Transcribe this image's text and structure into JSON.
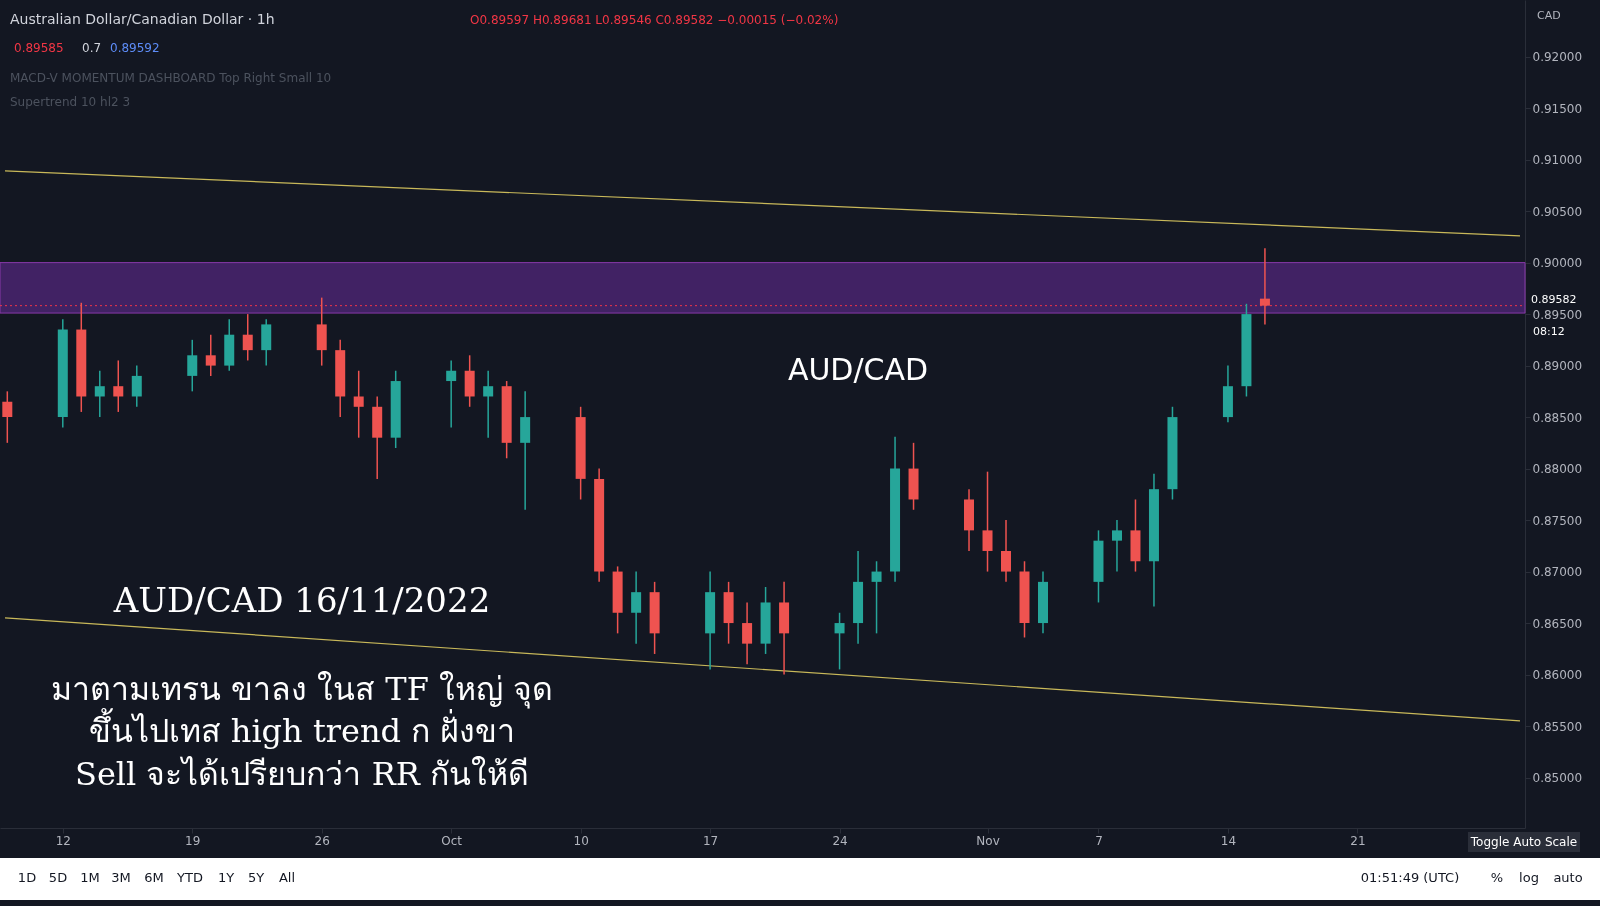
{
  "chart_data": {
    "type": "candlestick",
    "title": "Australian Dollar/Canadian Dollar · 1h",
    "x": [
      "2022-09-09",
      "2022-09-12",
      "2022-09-13",
      "2022-09-14",
      "2022-09-15",
      "2022-09-16",
      "2022-09-19",
      "2022-09-20",
      "2022-09-21",
      "2022-09-22",
      "2022-09-23",
      "2022-09-26",
      "2022-09-27",
      "2022-09-28",
      "2022-09-29",
      "2022-09-30",
      "2022-10-03",
      "2022-10-04",
      "2022-10-05",
      "2022-10-06",
      "2022-10-07",
      "2022-10-10",
      "2022-10-11",
      "2022-10-12",
      "2022-10-13",
      "2022-10-14",
      "2022-10-17",
      "2022-10-18",
      "2022-10-19",
      "2022-10-20",
      "2022-10-21",
      "2022-10-24",
      "2022-10-25",
      "2022-10-26",
      "2022-10-27",
      "2022-10-28",
      "2022-10-31",
      "2022-11-01",
      "2022-11-02",
      "2022-11-03",
      "2022-11-04",
      "2022-11-07",
      "2022-11-08",
      "2022-11-09",
      "2022-11-10",
      "2022-11-11",
      "2022-11-14",
      "2022-11-15",
      "2022-11-16"
    ],
    "ohlc": [
      [
        0.8865,
        0.8875,
        0.8825,
        0.885
      ],
      [
        0.885,
        0.8945,
        0.884,
        0.8935
      ],
      [
        0.8935,
        0.8961,
        0.8855,
        0.887
      ],
      [
        0.887,
        0.8895,
        0.885,
        0.888
      ],
      [
        0.888,
        0.8905,
        0.8855,
        0.887
      ],
      [
        0.887,
        0.89,
        0.886,
        0.889
      ],
      [
        0.889,
        0.8925,
        0.8875,
        0.891
      ],
      [
        0.891,
        0.893,
        0.889,
        0.89
      ],
      [
        0.89,
        0.8945,
        0.8895,
        0.893
      ],
      [
        0.893,
        0.895,
        0.8905,
        0.8915
      ],
      [
        0.8915,
        0.8945,
        0.89,
        0.894
      ],
      [
        0.894,
        0.8966,
        0.89,
        0.8915
      ],
      [
        0.8915,
        0.8925,
        0.885,
        0.887
      ],
      [
        0.887,
        0.8895,
        0.883,
        0.886
      ],
      [
        0.886,
        0.887,
        0.879,
        0.883
      ],
      [
        0.883,
        0.8895,
        0.882,
        0.8885
      ],
      [
        0.8885,
        0.8905,
        0.884,
        0.8895
      ],
      [
        0.8895,
        0.891,
        0.886,
        0.887
      ],
      [
        0.887,
        0.8895,
        0.883,
        0.888
      ],
      [
        0.888,
        0.8885,
        0.881,
        0.8825
      ],
      [
        0.8825,
        0.8875,
        0.876,
        0.885
      ],
      [
        0.885,
        0.886,
        0.877,
        0.879
      ],
      [
        0.879,
        0.88,
        0.869,
        0.87
      ],
      [
        0.87,
        0.8705,
        0.864,
        0.866
      ],
      [
        0.866,
        0.87,
        0.863,
        0.868
      ],
      [
        0.868,
        0.869,
        0.862,
        0.864
      ],
      [
        0.864,
        0.87,
        0.8605,
        0.868
      ],
      [
        0.868,
        0.869,
        0.863,
        0.865
      ],
      [
        0.865,
        0.867,
        0.861,
        0.863
      ],
      [
        0.863,
        0.8685,
        0.862,
        0.867
      ],
      [
        0.867,
        0.869,
        0.86,
        0.864
      ],
      [
        0.864,
        0.866,
        0.8605,
        0.865
      ],
      [
        0.865,
        0.872,
        0.863,
        0.869
      ],
      [
        0.869,
        0.871,
        0.864,
        0.87
      ],
      [
        0.87,
        0.8831,
        0.869,
        0.88
      ],
      [
        0.88,
        0.8825,
        0.876,
        0.877
      ],
      [
        0.877,
        0.878,
        0.872,
        0.874
      ],
      [
        0.874,
        0.8797,
        0.87,
        0.872
      ],
      [
        0.872,
        0.875,
        0.869,
        0.87
      ],
      [
        0.87,
        0.871,
        0.8636,
        0.865
      ],
      [
        0.865,
        0.87,
        0.864,
        0.869
      ],
      [
        0.869,
        0.874,
        0.867,
        0.873
      ],
      [
        0.873,
        0.875,
        0.87,
        0.874
      ],
      [
        0.874,
        0.877,
        0.87,
        0.871
      ],
      [
        0.871,
        0.8795,
        0.8666,
        0.878
      ],
      [
        0.878,
        0.886,
        0.877,
        0.885
      ],
      [
        0.885,
        0.89,
        0.8845,
        0.888
      ],
      [
        0.888,
        0.896,
        0.887,
        0.895
      ],
      [
        0.8965,
        0.9014,
        0.894,
        0.89582
      ]
    ],
    "colors": [
      "#ef5350",
      "#26a69a",
      "#ef5350",
      "#26a69a",
      "#ef5350",
      "#26a69a",
      "#26a69a",
      "#ef5350",
      "#26a69a",
      "#ef5350",
      "#26a69a",
      "#ef5350",
      "#ef5350",
      "#ef5350",
      "#ef5350",
      "#26a69a",
      "#26a69a",
      "#ef5350",
      "#26a69a",
      "#ef5350",
      "#26a69a",
      "#ef5350",
      "#ef5350",
      "#ef5350",
      "#26a69a",
      "#ef5350",
      "#26a69a",
      "#ef5350",
      "#ef5350",
      "#26a69a",
      "#ef5350",
      "#26a69a",
      "#26a69a",
      "#26a69a",
      "#26a69a",
      "#ef5350",
      "#ef5350",
      "#ef5350",
      "#ef5350",
      "#ef5350",
      "#26a69a",
      "#26a69a",
      "#26a69a",
      "#ef5350",
      "#26a69a",
      "#26a69a",
      "#26a69a",
      "#26a69a",
      "#ef5350"
    ],
    "series": [
      {
        "type": "line",
        "color": "#c9b95a",
        "x": [
          "2022-09-08T21:00",
          "2022-11-29T19:00"
        ],
        "values": [
          0.9089,
          0.9026
        ]
      },
      {
        "type": "line",
        "color": "#c9b95a",
        "x": [
          "2022-09-08T21:00",
          "2022-11-29T19:00"
        ],
        "values": [
          0.8655,
          0.8555
        ]
      }
    ],
    "bands": [
      {
        "axis": "y",
        "from": 0.8951,
        "to": 0.9,
        "color": "#4a2470"
      }
    ],
    "ref_lines": [
      {
        "axis": "y",
        "value": 0.89582,
        "label": "0.89582",
        "color": "#f23645",
        "line_style": "dotted"
      }
    ],
    "xlim": [
      "2022-09-08T21:00",
      "2022-11-29T19:00"
    ],
    "xticks": [
      {
        "value": "2022-09-12",
        "label": "12"
      },
      {
        "value": "2022-09-19",
        "label": "19"
      },
      {
        "value": "2022-09-26",
        "label": "26"
      },
      {
        "value": "2022-10-03",
        "label": "Oct"
      },
      {
        "value": "2022-10-10",
        "label": "10"
      },
      {
        "value": "2022-10-17",
        "label": "17"
      },
      {
        "value": "2022-10-24",
        "label": "24"
      },
      {
        "value": "2022-11-01",
        "label": "Nov"
      },
      {
        "value": "2022-11-07",
        "label": "7"
      },
      {
        "value": "2022-11-14",
        "label": "14"
      },
      {
        "value": "2022-11-21",
        "label": "21"
      }
    ],
    "ylim": [
      0.8451,
      0.9255
    ],
    "yticks": [
      {
        "value": 0.85,
        "label": "0.85000"
      },
      {
        "value": 0.855,
        "label": "0.85500"
      },
      {
        "value": 0.86,
        "label": "0.86000"
      },
      {
        "value": 0.865,
        "label": "0.86500"
      },
      {
        "value": 0.87,
        "label": "0.87000"
      },
      {
        "value": 0.875,
        "label": "0.87500"
      },
      {
        "value": 0.88,
        "label": "0.88000"
      },
      {
        "value": 0.885,
        "label": "0.88500"
      },
      {
        "value": 0.89,
        "label": "0.89000"
      },
      {
        "value": 0.895,
        "label": "0.89500"
      },
      {
        "value": 0.9,
        "label": "0.90000"
      },
      {
        "value": 0.905,
        "label": "0.90500"
      },
      {
        "value": 0.91,
        "label": "0.91000"
      },
      {
        "value": 0.915,
        "label": "0.91500"
      },
      {
        "value": 0.92,
        "label": "0.92000"
      }
    ],
    "grid": false,
    "annotations": [
      "O0.89597 H0.89681 L0.89546 C0.89582 −0.00015 (−0.02%)",
      "0.89585",
      "0.7",
      "0.89592",
      "MACD-V MOMENTUM DASHBOARD Top Right Small 10",
      "Supertrend 10 hl2 3",
      "AUD/CAD",
      "AUD/CAD 16/11/2022",
      "มาตามเทรน ขาลง ในส TF ใหญ่ จุด",
      "ขึ้นไปเทส high trend ก ฝั่งขา",
      "Sell จะได้เปรียบกว่า RR กันให้ดี",
      "08:12",
      "CAD",
      "1D",
      "5D",
      "1M",
      "3M",
      "6M",
      "YTD",
      "1Y",
      "5Y",
      "All",
      "01:51:49 (UTC)",
      "%",
      "log",
      "auto",
      "Toggle Auto Scale"
    ]
  }
}
